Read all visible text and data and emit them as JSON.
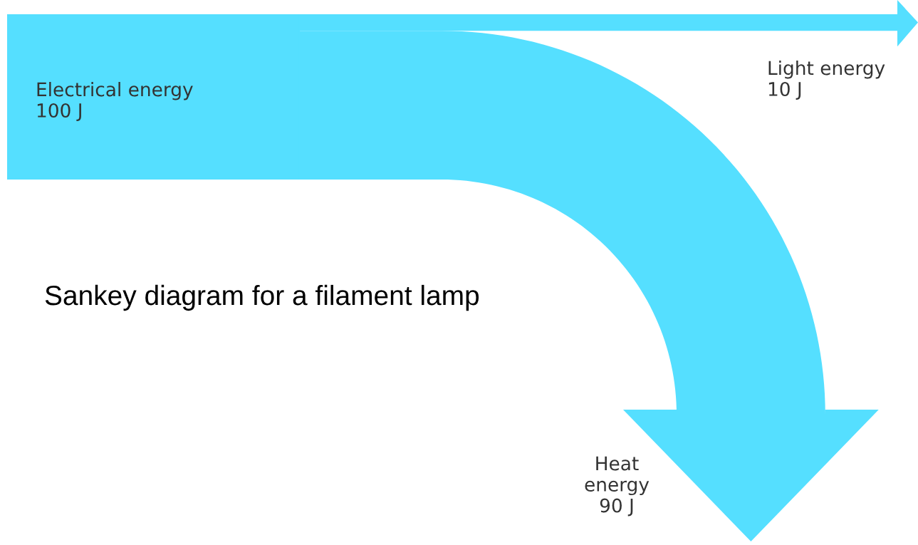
{
  "chart_data": {
    "type": "other",
    "title": "Sankey diagram for a filament lamp",
    "categories": [
      "Electrical energy",
      "Light energy",
      "Heat energy"
    ],
    "values": [
      100,
      10,
      90
    ],
    "value_labels": [
      "100 J",
      "10 J",
      "90 J"
    ],
    "colors": [
      "#55dfff",
      "#55dfff",
      "#55dfff"
    ]
  }
}
